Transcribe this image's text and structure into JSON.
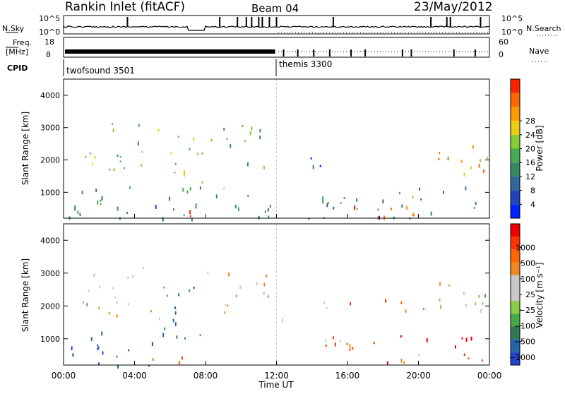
{
  "header": {
    "station": "Rankin Inlet (fitACF)",
    "beam": "Beam 04",
    "date": "23/May/2012"
  },
  "panels": {
    "nsky": {
      "label": "N.Sky",
      "ticks_left": [
        "10^5",
        "10^0"
      ],
      "ticks_right": [
        "10^5",
        "10^0"
      ],
      "right_label": "N.Search"
    },
    "freq": {
      "label_line1": "Freq.",
      "label_line2": "[MHz]",
      "ticks_left": [
        "18",
        "8"
      ],
      "ticks_right": [
        "60",
        "0"
      ],
      "right_label": "Nave"
    },
    "cpid": {
      "label": "CPID",
      "modes": [
        "twofsound 3501",
        "themis 3300"
      ]
    }
  },
  "chart_data": [
    {
      "type": "heatmap",
      "parameter": "power",
      "ylabel": "Slant Range [km]",
      "xlabel": "Time UT",
      "x_ticks": [
        "00:00",
        "04:00",
        "08:00",
        "12:00",
        "16:00",
        "20:00",
        "00:00"
      ],
      "y_ticks": [
        "1000",
        "2000",
        "3000",
        "4000"
      ],
      "ylim": [
        200,
        4500
      ],
      "xlim_hours": [
        0,
        24
      ],
      "colorbar": {
        "label": "Power [dB]",
        "ticks": [
          "4",
          "8",
          "12",
          "16",
          "20",
          "24",
          "28"
        ],
        "colors": [
          "#0022ff",
          "#2244bb",
          "#336699",
          "#338866",
          "#44aa55",
          "#88cc33",
          "#eecc11",
          "#ff9900",
          "#ff6600",
          "#ff2200"
        ]
      },
      "echo_regions": [
        {
          "t0": 0.2,
          "t1": 11.8,
          "r0": 200,
          "r1": 1200,
          "level": 0.35,
          "density": 0.55
        },
        {
          "t0": 1.0,
          "t1": 5.5,
          "r0": 1600,
          "r1": 3200,
          "level": 0.45,
          "density": 0.45
        },
        {
          "t0": 5.5,
          "t1": 8.0,
          "r0": 1200,
          "r1": 2800,
          "level": 0.55,
          "density": 0.5
        },
        {
          "t0": 6.0,
          "t1": 8.0,
          "r0": 250,
          "r1": 500,
          "level": 0.95,
          "density": 0.9
        },
        {
          "t0": 8.0,
          "t1": 11.5,
          "r0": 1800,
          "r1": 3100,
          "level": 0.45,
          "density": 0.5
        },
        {
          "t0": 12.2,
          "t1": 15.0,
          "r0": 1600,
          "r1": 2300,
          "level": 0.15,
          "density": 0.3
        },
        {
          "t0": 14.5,
          "t1": 24.0,
          "r0": 400,
          "r1": 1200,
          "level": 0.35,
          "density": 0.55
        },
        {
          "t0": 16.3,
          "t1": 20.5,
          "r0": 250,
          "r1": 650,
          "level": 0.92,
          "density": 0.8
        },
        {
          "t0": 21.0,
          "t1": 24.0,
          "r0": 1600,
          "r1": 2700,
          "level": 0.7,
          "density": 0.6
        },
        {
          "t0": 0.0,
          "t1": 24.0,
          "r0": 200,
          "r1": 300,
          "level": 0.3,
          "density": 0.6
        }
      ]
    },
    {
      "type": "heatmap",
      "parameter": "velocity",
      "ylabel": "Slant Range [km]",
      "xlabel": "Time UT",
      "x_ticks": [
        "00:00",
        "04:00",
        "08:00",
        "12:00",
        "16:00",
        "20:00",
        "00:00"
      ],
      "y_ticks": [
        "1000",
        "2000",
        "3000",
        "4000"
      ],
      "ylim": [
        200,
        4500
      ],
      "xlim_hours": [
        0,
        24
      ],
      "colorbar": {
        "label": "Velocity [m s⁻¹]",
        "ticks": [
          "1000",
          "500",
          "100",
          "25",
          "−25",
          "−100",
          "−500",
          "−1000"
        ],
        "colors": [
          "#2244cc",
          "#2266aa",
          "#337755",
          "#44aa44",
          "#88cc44",
          "#c8c8c8",
          "#c8c8c8",
          "#ee8822",
          "#ff6600",
          "#ff3300",
          "#ee0000"
        ]
      },
      "echo_regions": [
        {
          "t0": 0.2,
          "t1": 5.0,
          "r0": 200,
          "r1": 1500,
          "level": 0.1,
          "density": 0.45
        },
        {
          "t0": 1.0,
          "t1": 5.5,
          "r0": 1600,
          "r1": 3200,
          "level": 0.5,
          "density": 0.45
        },
        {
          "t0": 5.5,
          "t1": 8.0,
          "r0": 700,
          "r1": 2800,
          "level": 0.25,
          "density": 0.5
        },
        {
          "t0": 5.0,
          "t1": 8.0,
          "r0": 200,
          "r1": 500,
          "level": 0.75,
          "density": 0.6
        },
        {
          "t0": 8.0,
          "t1": 11.5,
          "r0": 1800,
          "r1": 3100,
          "level": 0.5,
          "density": 0.5
        },
        {
          "t0": 12.2,
          "t1": 15.0,
          "r0": 1600,
          "r1": 2300,
          "level": 0.5,
          "density": 0.3
        },
        {
          "t0": 14.5,
          "t1": 24.0,
          "r0": 300,
          "r1": 1200,
          "level": 0.78,
          "density": 0.5
        },
        {
          "t0": 15.0,
          "t1": 21.0,
          "r0": 1700,
          "r1": 2300,
          "level": 0.72,
          "density": 0.25
        },
        {
          "t0": 21.0,
          "t1": 24.0,
          "r0": 1600,
          "r1": 2800,
          "level": 0.5,
          "density": 0.6
        }
      ]
    }
  ]
}
